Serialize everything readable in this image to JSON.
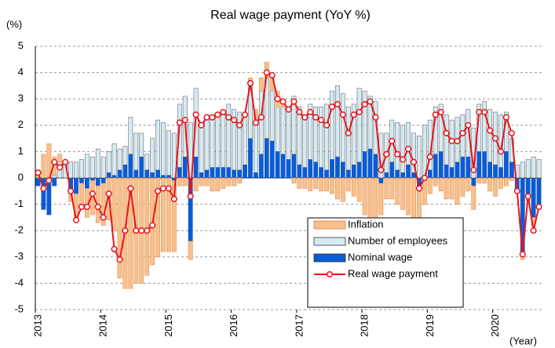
{
  "chart_data": {
    "type": "bar-line",
    "title": "Real wage payment (YoY %)",
    "y_label": "(%)",
    "x_label": "(Year)",
    "categories": [
      "2013",
      null,
      null,
      null,
      null,
      null,
      null,
      null,
      null,
      null,
      null,
      null,
      "2014",
      null,
      null,
      null,
      null,
      null,
      null,
      null,
      null,
      null,
      null,
      null,
      "2015",
      null,
      null,
      null,
      null,
      null,
      null,
      null,
      null,
      null,
      null,
      null,
      "2016",
      null,
      null,
      null,
      null,
      null,
      null,
      null,
      null,
      null,
      null,
      null,
      "2017",
      null,
      null,
      null,
      null,
      null,
      null,
      null,
      null,
      null,
      null,
      null,
      "2018",
      null,
      null,
      null,
      null,
      null,
      null,
      null,
      null,
      null,
      null,
      null,
      "2019",
      null,
      null,
      null,
      null,
      null,
      null,
      null,
      null,
      null,
      null,
      null,
      "2020",
      null,
      null,
      null,
      null,
      null,
      null,
      null,
      null
    ],
    "ylim": [
      -5,
      5
    ],
    "yticks": [
      -5,
      -4,
      -3,
      -2,
      -1,
      0,
      1,
      2,
      3,
      4,
      5
    ],
    "grid": true,
    "series": [
      {
        "name": "Nominal wage",
        "kind": "bar",
        "color": "#0a5cd6",
        "values": [
          -0.3,
          -1.2,
          -1.4,
          -0.3,
          0.0,
          0.0,
          -0.5,
          -0.6,
          -0.2,
          -0.4,
          -0.1,
          -0.3,
          -0.2,
          0.2,
          0.1,
          0.3,
          0.5,
          0.9,
          0.3,
          0.8,
          0.3,
          0.2,
          0.3,
          0.1,
          0.1,
          -0.1,
          0.4,
          0.8,
          -2.4,
          0.8,
          0.2,
          0.3,
          0.4,
          0.4,
          0.4,
          0.4,
          0.3,
          0.3,
          0.5,
          1.5,
          0.2,
          0.9,
          1.5,
          1.4,
          1.0,
          0.9,
          0.7,
          0.9,
          0.5,
          0.4,
          0.7,
          0.6,
          0.4,
          0.3,
          0.7,
          0.8,
          0.6,
          0.3,
          0.5,
          0.6,
          1.0,
          1.1,
          0.9,
          -0.2,
          0.2,
          0.6,
          0.3,
          0.2,
          0.5,
          0.2,
          -0.5,
          0.0,
          0.3,
          0.9,
          1.0,
          0.5,
          0.4,
          0.6,
          0.8,
          0.8,
          -0.3,
          1.0,
          1.0,
          0.6,
          0.5,
          0.4,
          1.0,
          0.6,
          -0.5,
          -2.9,
          -0.7,
          -1.5,
          -1.0
        ]
      },
      {
        "name": "Number of employees",
        "kind": "bar",
        "color": "#d6eaf2",
        "values": [
          0.0,
          0.0,
          0.0,
          0.1,
          0.6,
          0.6,
          0.6,
          0.6,
          0.7,
          0.9,
          0.8,
          1.1,
          0.8,
          0.8,
          1.2,
          0.8,
          0.7,
          1.4,
          1.4,
          0.9,
          0.6,
          1.3,
          1.9,
          2.0,
          1.7,
          1.7,
          2.4,
          2.3,
          2.1,
          2.6,
          1.7,
          1.9,
          1.9,
          2.0,
          2.1,
          2.4,
          2.3,
          2.2,
          1.9,
          2.1,
          2.0,
          2.4,
          2.3,
          1.9,
          1.7,
          1.8,
          1.9,
          2.2,
          2.2,
          2.0,
          2.1,
          2.1,
          2.3,
          2.5,
          2.6,
          2.7,
          2.6,
          2.4,
          2.3,
          2.8,
          2.3,
          2.0,
          2.0,
          1.7,
          1.5,
          1.6,
          1.8,
          1.8,
          1.6,
          1.5,
          1.6,
          2.0,
          1.9,
          1.8,
          1.8,
          1.9,
          1.8,
          1.7,
          1.6,
          1.8,
          1.9,
          1.8,
          1.9,
          2.0,
          2.0,
          2.0,
          1.5,
          0.9,
          0.5,
          0.6,
          0.7,
          0.8,
          0.7
        ]
      },
      {
        "name": "Inflation",
        "kind": "bar",
        "color": "#f8c08c",
        "values": [
          0.3,
          0.9,
          1.3,
          0.7,
          0.3,
          0.0,
          -0.4,
          -0.9,
          -1.0,
          -1.1,
          -1.3,
          -1.4,
          -1.6,
          -1.6,
          -2.0,
          -3.8,
          -4.2,
          -4.2,
          -4.0,
          -4.0,
          -3.7,
          -3.3,
          -3.0,
          -2.8,
          -2.8,
          -2.7,
          -0.3,
          -0.3,
          -0.7,
          -0.5,
          -0.3,
          -0.3,
          -0.5,
          -0.5,
          -0.4,
          -0.3,
          -0.3,
          -0.2,
          0.0,
          0.2,
          0.4,
          0.5,
          0.6,
          0.5,
          0.6,
          0.2,
          0.0,
          -0.2,
          -0.4,
          -0.4,
          -0.5,
          -0.4,
          -0.5,
          -0.5,
          -0.6,
          -0.8,
          -0.9,
          -0.5,
          -0.7,
          -0.9,
          -1.4,
          -1.7,
          -1.8,
          -1.2,
          -0.8,
          -0.8,
          -1.0,
          -1.2,
          -1.4,
          -1.7,
          -1.6,
          -1.0,
          -0.6,
          -0.3,
          -0.5,
          -0.8,
          -0.8,
          -1.0,
          -0.7,
          -0.5,
          -0.9,
          -0.2,
          -0.2,
          -0.5,
          -0.7,
          -0.4,
          -0.3,
          -0.1,
          0.0,
          -0.2,
          -0.2,
          -0.3,
          0.0
        ]
      },
      {
        "name": "Real wage payment",
        "kind": "line",
        "color": "#e8141c",
        "values": [
          0.2,
          -0.4,
          -0.1,
          0.6,
          0.4,
          0.6,
          -0.5,
          -1.6,
          -1.1,
          -1.1,
          -0.6,
          -1.1,
          -1.5,
          -0.6,
          -2.7,
          -3.1,
          -2.0,
          -0.4,
          -2.0,
          -2.0,
          -2.0,
          -1.8,
          -0.5,
          -0.4,
          -0.4,
          -0.8,
          2.1,
          2.2,
          -0.7,
          2.4,
          2.0,
          2.3,
          2.3,
          2.4,
          2.5,
          2.3,
          2.2,
          2.0,
          2.4,
          3.6,
          2.1,
          2.3,
          4.0,
          3.9,
          3.0,
          2.9,
          2.6,
          2.9,
          2.5,
          2.3,
          2.5,
          2.3,
          2.2,
          2.0,
          2.7,
          2.8,
          2.4,
          1.7,
          2.4,
          2.5,
          2.8,
          2.9,
          2.3,
          0.3,
          0.9,
          1.4,
          0.9,
          0.7,
          1.1,
          0.6,
          -0.4,
          0.0,
          0.8,
          2.4,
          2.5,
          1.7,
          1.4,
          1.4,
          1.7,
          2.0,
          0.3,
          2.5,
          2.5,
          1.8,
          1.5,
          1.0,
          2.3,
          1.7,
          -0.5,
          -2.9,
          -0.7,
          -2.0,
          -1.1
        ]
      }
    ]
  }
}
